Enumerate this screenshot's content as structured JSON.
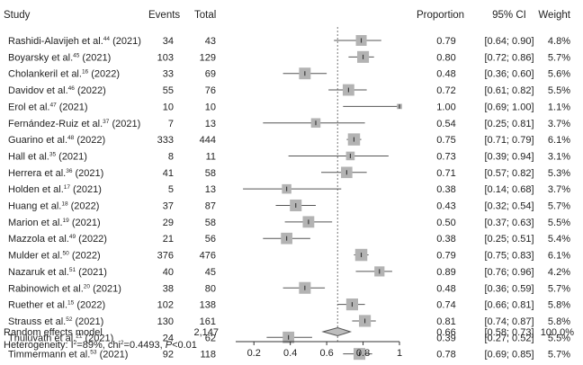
{
  "chart_data": {
    "type": "forest",
    "columns": {
      "study": "Study",
      "events": "Events",
      "total": "Total",
      "proportion": "Proportion",
      "ci": "95% CI",
      "weight": "Weight"
    },
    "studies": [
      {
        "name": "Rashidi-Alavijeh et al.",
        "ref": "44",
        "year": "(2021)",
        "events": "34",
        "total": "43",
        "proportion": "0.79",
        "ci": "[0.64; 0.90]",
        "weight": "4.8%",
        "est": 0.79,
        "lo": 0.64,
        "hi": 0.9,
        "w": 4.8
      },
      {
        "name": "Boyarsky et al.",
        "ref": "45",
        "year": "(2021)",
        "events": "103",
        "total": "129",
        "proportion": "0.80",
        "ci": "[0.72; 0.86]",
        "weight": "5.7%",
        "est": 0.8,
        "lo": 0.72,
        "hi": 0.86,
        "w": 5.7
      },
      {
        "name": "Cholankeril et al.",
        "ref": "16",
        "year": "(2022)",
        "events": "33",
        "total": "69",
        "proportion": "0.48",
        "ci": "[0.36; 0.60]",
        "weight": "5.6%",
        "est": 0.48,
        "lo": 0.36,
        "hi": 0.6,
        "w": 5.6
      },
      {
        "name": "Davidov et al.",
        "ref": "46",
        "year": "(2022)",
        "events": "55",
        "total": "76",
        "proportion": "0.72",
        "ci": "[0.61; 0.82]",
        "weight": "5.5%",
        "est": 0.72,
        "lo": 0.61,
        "hi": 0.82,
        "w": 5.5
      },
      {
        "name": "Erol et al.",
        "ref": "47",
        "year": "(2021)",
        "events": "10",
        "total": "10",
        "proportion": "1.00",
        "ci": "[0.69; 1.00]",
        "weight": "1.1%",
        "est": 1.0,
        "lo": 0.69,
        "hi": 1.0,
        "w": 1.1
      },
      {
        "name": "Fernández-Ruiz et al.",
        "ref": "37",
        "year": "(2021)",
        "events": "7",
        "total": "13",
        "proportion": "0.54",
        "ci": "[0.25; 0.81]",
        "weight": "3.7%",
        "est": 0.54,
        "lo": 0.25,
        "hi": 0.81,
        "w": 3.7
      },
      {
        "name": "Guarino et al.",
        "ref": "48",
        "year": "(2022)",
        "events": "333",
        "total": "444",
        "proportion": "0.75",
        "ci": "[0.71; 0.79]",
        "weight": "6.1%",
        "est": 0.75,
        "lo": 0.71,
        "hi": 0.79,
        "w": 6.1
      },
      {
        "name": "Hall et al.",
        "ref": "35",
        "year": "(2021)",
        "events": "8",
        "total": "11",
        "proportion": "0.73",
        "ci": "[0.39; 0.94]",
        "weight": "3.1%",
        "est": 0.73,
        "lo": 0.39,
        "hi": 0.94,
        "w": 3.1
      },
      {
        "name": "Herrera et al.",
        "ref": "36",
        "year": "(2021)",
        "events": "41",
        "total": "58",
        "proportion": "0.71",
        "ci": "[0.57; 0.82]",
        "weight": "5.3%",
        "est": 0.71,
        "lo": 0.57,
        "hi": 0.82,
        "w": 5.3
      },
      {
        "name": "Holden et al.",
        "ref": "17",
        "year": "(2021)",
        "events": "5",
        "total": "13",
        "proportion": "0.38",
        "ci": "[0.14; 0.68]",
        "weight": "3.7%",
        "est": 0.38,
        "lo": 0.14,
        "hi": 0.68,
        "w": 3.7
      },
      {
        "name": "Huang et al.",
        "ref": "18",
        "year": "(2022)",
        "events": "37",
        "total": "87",
        "proportion": "0.43",
        "ci": "[0.32; 0.54]",
        "weight": "5.7%",
        "est": 0.43,
        "lo": 0.32,
        "hi": 0.54,
        "w": 5.7
      },
      {
        "name": "Marion et al.",
        "ref": "19",
        "year": "(2021)",
        "events": "29",
        "total": "58",
        "proportion": "0.50",
        "ci": "[0.37; 0.63]",
        "weight": "5.5%",
        "est": 0.5,
        "lo": 0.37,
        "hi": 0.63,
        "w": 5.5
      },
      {
        "name": "Mazzola et al.",
        "ref": "49",
        "year": "(2022)",
        "events": "21",
        "total": "56",
        "proportion": "0.38",
        "ci": "[0.25; 0.51]",
        "weight": "5.4%",
        "est": 0.38,
        "lo": 0.25,
        "hi": 0.51,
        "w": 5.4
      },
      {
        "name": "Mulder et al.",
        "ref": "50",
        "year": "(2022)",
        "events": "376",
        "total": "476",
        "proportion": "0.79",
        "ci": "[0.75; 0.83]",
        "weight": "6.1%",
        "est": 0.79,
        "lo": 0.75,
        "hi": 0.83,
        "w": 6.1
      },
      {
        "name": "Nazaruk et al.",
        "ref": "51",
        "year": "(2021)",
        "events": "40",
        "total": "45",
        "proportion": "0.89",
        "ci": "[0.76; 0.96]",
        "weight": "4.2%",
        "est": 0.89,
        "lo": 0.76,
        "hi": 0.96,
        "w": 4.2
      },
      {
        "name": "Rabinowich et al.",
        "ref": "20",
        "year": "(2021)",
        "events": "38",
        "total": "80",
        "proportion": "0.48",
        "ci": "[0.36; 0.59]",
        "weight": "5.7%",
        "est": 0.48,
        "lo": 0.36,
        "hi": 0.59,
        "w": 5.7
      },
      {
        "name": "Ruether et al.",
        "ref": "15",
        "year": "(2022)",
        "events": "102",
        "total": "138",
        "proportion": "0.74",
        "ci": "[0.66; 0.81]",
        "weight": "5.8%",
        "est": 0.74,
        "lo": 0.66,
        "hi": 0.81,
        "w": 5.8
      },
      {
        "name": "Strauss et al.",
        "ref": "52",
        "year": "(2021)",
        "events": "130",
        "total": "161",
        "proportion": "0.81",
        "ci": "[0.74; 0.87]",
        "weight": "5.8%",
        "est": 0.81,
        "lo": 0.74,
        "hi": 0.87,
        "w": 5.8
      },
      {
        "name": "Thuluvath et al.",
        "ref": "21",
        "year": "(2021)",
        "events": "24",
        "total": "62",
        "proportion": "0.39",
        "ci": "[0.27; 0.52]",
        "weight": "5.5%",
        "est": 0.39,
        "lo": 0.27,
        "hi": 0.52,
        "w": 5.5
      },
      {
        "name": "Timmermann et al.",
        "ref": "53",
        "year": "(2021)",
        "events": "92",
        "total": "118",
        "proportion": "0.78",
        "ci": "[0.69; 0.85]",
        "weight": "5.7%",
        "est": 0.78,
        "lo": 0.69,
        "hi": 0.85,
        "w": 5.7
      }
    ],
    "pooled": {
      "label": "Random effects model",
      "total": "2,147",
      "proportion": "0.66",
      "ci": "[0.58; 0.73]",
      "weight": "100.0%",
      "est": 0.66,
      "lo": 0.58,
      "hi": 0.73
    },
    "heterogeneity": {
      "prefix": "Heterogeneity: I",
      "i2_sup": "2",
      "i2_value": "=89%, chi",
      "chi_sup": "2",
      "chi_value": "=0.4493, ",
      "p_label": "P",
      "p_value": "<0.01"
    },
    "x_axis": {
      "min": 0.1,
      "max": 1.0,
      "ticks": [
        0.2,
        0.4,
        0.6,
        0.8,
        1.0
      ],
      "tick_labels": [
        "0.2",
        "0.4",
        "0.6",
        "0.8",
        "1"
      ]
    },
    "reference_line": 0.66,
    "colors": {
      "box": "#b3b3b3",
      "line": "#555555",
      "diamond_fill": "#bdbdbd",
      "dotted": "#777777",
      "text": "#222222"
    }
  }
}
